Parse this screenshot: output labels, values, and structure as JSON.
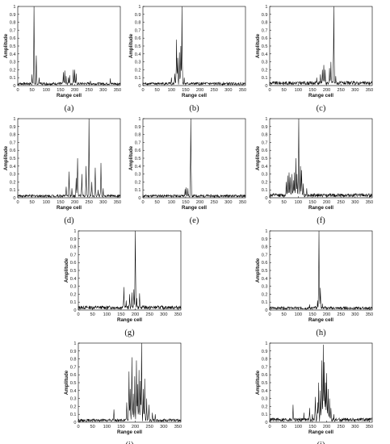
{
  "figure": {
    "common": {
      "xlabel": "Range cell",
      "ylabel": "Amplitude",
      "xlim": [
        0,
        360
      ],
      "ylim": [
        0,
        1
      ],
      "xticks": [
        0,
        50,
        100,
        150,
        200,
        250,
        300,
        350
      ],
      "yticks": [
        0,
        0.1,
        0.2,
        0.3,
        0.4,
        0.5,
        0.6,
        0.7,
        0.8,
        0.9,
        1
      ],
      "line_color": "#000000"
    }
  },
  "chart_data": [
    {
      "type": "line",
      "caption": "(a)",
      "xlabel": "Range cell",
      "ylabel": "Amplitude",
      "xlim": [
        0,
        360
      ],
      "ylim": [
        0,
        1
      ],
      "noise": 0.03,
      "peaks": [
        [
          50,
          0.14
        ],
        [
          57,
          1.0
        ],
        [
          65,
          0.38
        ],
        [
          75,
          0.1
        ],
        [
          160,
          0.17
        ],
        [
          165,
          0.19
        ],
        [
          170,
          0.12
        ],
        [
          178,
          0.1
        ],
        [
          182,
          0.13
        ],
        [
          195,
          0.2
        ],
        [
          200,
          0.2
        ],
        [
          205,
          0.15
        ],
        [
          255,
          0.06
        ],
        [
          325,
          0.09
        ]
      ]
    },
    {
      "type": "line",
      "caption": "(b)",
      "xlabel": "Range cell",
      "ylabel": "Amplitude",
      "xlim": [
        0,
        360
      ],
      "ylim": [
        0,
        1
      ],
      "noise": 0.03,
      "peaks": [
        [
          100,
          0.1
        ],
        [
          112,
          0.15
        ],
        [
          118,
          0.58
        ],
        [
          122,
          0.35
        ],
        [
          128,
          0.42
        ],
        [
          133,
          0.5
        ],
        [
          137,
          1.0
        ],
        [
          145,
          0.1
        ]
      ]
    },
    {
      "type": "line",
      "caption": "(c)",
      "xlabel": "Range cell",
      "ylabel": "Amplitude",
      "xlim": [
        0,
        360
      ],
      "ylim": [
        0,
        1
      ],
      "noise": 0.04,
      "peaks": [
        [
          165,
          0.1
        ],
        [
          178,
          0.14
        ],
        [
          185,
          0.2
        ],
        [
          190,
          0.26
        ],
        [
          195,
          0.2
        ],
        [
          210,
          0.22
        ],
        [
          215,
          0.3
        ],
        [
          225,
          1.0
        ],
        [
          232,
          0.12
        ]
      ]
    },
    {
      "type": "line",
      "caption": "(d)",
      "xlabel": "Range cell",
      "ylabel": "Amplitude",
      "xlim": [
        0,
        360
      ],
      "ylim": [
        0,
        1
      ],
      "noise": 0.03,
      "peaks": [
        [
          170,
          0.14
        ],
        [
          180,
          0.33
        ],
        [
          190,
          0.12
        ],
        [
          205,
          0.25
        ],
        [
          210,
          0.5
        ],
        [
          225,
          0.3
        ],
        [
          240,
          0.4
        ],
        [
          250,
          1.0
        ],
        [
          260,
          0.2
        ],
        [
          272,
          0.38
        ],
        [
          282,
          0.1
        ],
        [
          292,
          0.44
        ],
        [
          300,
          0.12
        ]
      ]
    },
    {
      "type": "line",
      "caption": "(e)",
      "xlabel": "Range cell",
      "ylabel": "Amplitude",
      "xlim": [
        0,
        360
      ],
      "ylim": [
        0,
        1
      ],
      "noise": 0.03,
      "peaks": [
        [
          148,
          0.11
        ],
        [
          152,
          0.13
        ],
        [
          158,
          0.12
        ],
        [
          168,
          1.0
        ]
      ]
    },
    {
      "type": "line",
      "caption": "(f)",
      "xlabel": "Range cell",
      "ylabel": "Amplitude",
      "xlim": [
        0,
        360
      ],
      "ylim": [
        0,
        1
      ],
      "noise": 0.04,
      "peaks": [
        [
          58,
          0.2
        ],
        [
          63,
          0.28
        ],
        [
          68,
          0.32
        ],
        [
          72,
          0.26
        ],
        [
          78,
          0.3
        ],
        [
          83,
          0.22
        ],
        [
          87,
          0.32
        ],
        [
          92,
          0.5
        ],
        [
          96,
          0.3
        ],
        [
          102,
          1.0
        ],
        [
          108,
          0.4
        ],
        [
          112,
          0.35
        ],
        [
          118,
          0.18
        ],
        [
          130,
          0.12
        ]
      ]
    },
    {
      "type": "line",
      "caption": "(g)",
      "xlabel": "Range cell",
      "ylabel": "Amplitude",
      "xlim": [
        0,
        360
      ],
      "ylim": [
        0,
        1
      ],
      "noise": 0.04,
      "peaks": [
        [
          160,
          0.29
        ],
        [
          168,
          0.12
        ],
        [
          180,
          0.2
        ],
        [
          188,
          0.22
        ],
        [
          195,
          0.26
        ],
        [
          200,
          1.0
        ],
        [
          205,
          0.15
        ],
        [
          215,
          0.21
        ],
        [
          230,
          0.06
        ]
      ]
    },
    {
      "type": "line",
      "caption": "(h)",
      "xlabel": "Range cell",
      "ylabel": "Amplitude",
      "xlim": [
        0,
        360
      ],
      "ylim": [
        0,
        1
      ],
      "noise": 0.03,
      "peaks": [
        [
          140,
          0.07
        ],
        [
          160,
          0.05
        ],
        [
          168,
          0.12
        ],
        [
          173,
          1.0
        ],
        [
          178,
          0.28
        ],
        [
          185,
          0.08
        ],
        [
          195,
          0.05
        ]
      ]
    },
    {
      "type": "line",
      "caption": "(i)",
      "xlabel": "Range cell",
      "ylabel": "Amplitude",
      "xlim": [
        0,
        360
      ],
      "ylim": [
        0,
        1
      ],
      "noise": 0.03,
      "peaks": [
        [
          125,
          0.16
        ],
        [
          170,
          0.25
        ],
        [
          178,
          0.64
        ],
        [
          182,
          0.42
        ],
        [
          188,
          0.82
        ],
        [
          193,
          0.36
        ],
        [
          198,
          0.58
        ],
        [
          204,
          0.78
        ],
        [
          208,
          0.48
        ],
        [
          213,
          0.66
        ],
        [
          218,
          0.52
        ],
        [
          222,
          1.0
        ],
        [
          228,
          0.42
        ],
        [
          233,
          0.55
        ],
        [
          240,
          0.3
        ],
        [
          248,
          0.22
        ],
        [
          260,
          0.12
        ],
        [
          270,
          0.1
        ]
      ]
    },
    {
      "type": "line",
      "caption": "(j)",
      "xlabel": "Range cell",
      "ylabel": "Amplitude",
      "xlim": [
        0,
        360
      ],
      "ylim": [
        0,
        1
      ],
      "noise": 0.04,
      "peaks": [
        [
          82,
          0.22
        ],
        [
          120,
          0.12
        ],
        [
          140,
          0.18
        ],
        [
          150,
          0.1
        ],
        [
          160,
          0.32
        ],
        [
          168,
          0.25
        ],
        [
          172,
          0.5
        ],
        [
          178,
          0.4
        ],
        [
          183,
          0.78
        ],
        [
          188,
          0.98
        ],
        [
          192,
          0.76
        ],
        [
          196,
          0.5
        ],
        [
          200,
          0.62
        ],
        [
          205,
          0.42
        ],
        [
          210,
          0.3
        ],
        [
          215,
          0.18
        ],
        [
          225,
          0.1
        ]
      ]
    }
  ]
}
